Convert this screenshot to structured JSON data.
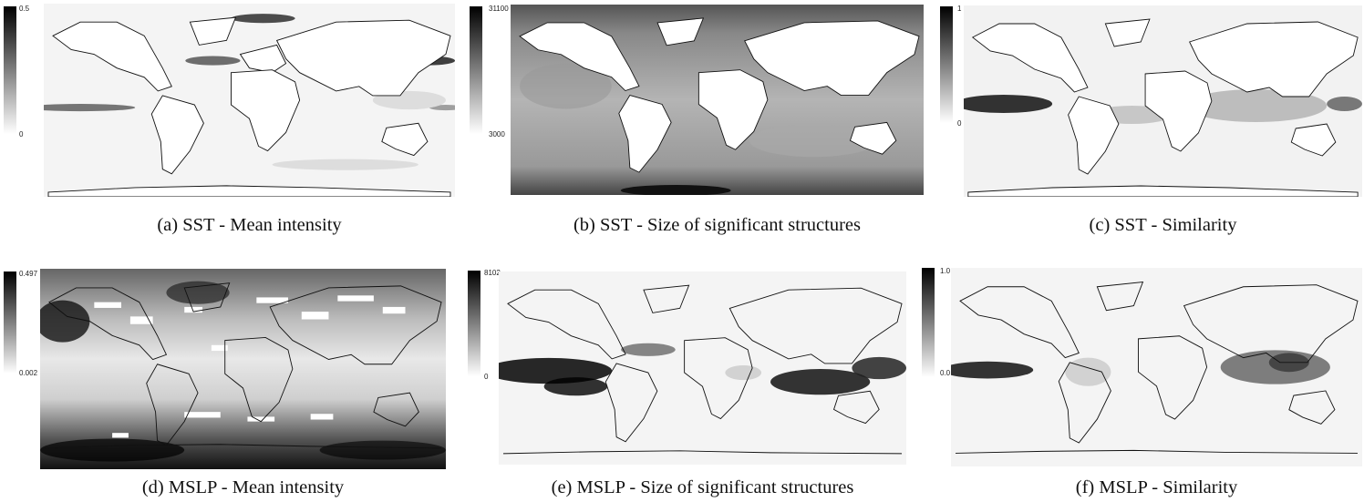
{
  "figure": {
    "panels": [
      {
        "id": "a",
        "caption": "(a)  SST - Mean intensity",
        "variable": "SST",
        "metric": "Mean intensity",
        "colorbar": {
          "max": "0.5",
          "min": "0"
        }
      },
      {
        "id": "b",
        "caption": "(b)  SST - Size of significant structures",
        "variable": "SST",
        "metric": "Size of significant structures",
        "colorbar": {
          "max": "31100",
          "min": "3000"
        }
      },
      {
        "id": "c",
        "caption": "(c)  SST - Similarity",
        "variable": "SST",
        "metric": "Similarity",
        "colorbar": {
          "max": "1",
          "min": "0"
        }
      },
      {
        "id": "d",
        "caption": "(d)  MSLP - Mean intensity",
        "variable": "MSLP",
        "metric": "Mean intensity",
        "colorbar": {
          "max": "0.497",
          "min": "0.002"
        }
      },
      {
        "id": "e",
        "caption": "(e)  MSLP - Size of significant structures",
        "variable": "MSLP",
        "metric": "Size of significant structures",
        "colorbar": {
          "max": "8102",
          "min": "0"
        }
      },
      {
        "id": "f",
        "caption": "(f)  MSLP - Similarity",
        "variable": "MSLP",
        "metric": "Similarity",
        "colorbar": {
          "max": "1.0",
          "min": "0.0"
        }
      }
    ],
    "colormap": {
      "high": "#000000",
      "low": "#ffffff"
    }
  }
}
